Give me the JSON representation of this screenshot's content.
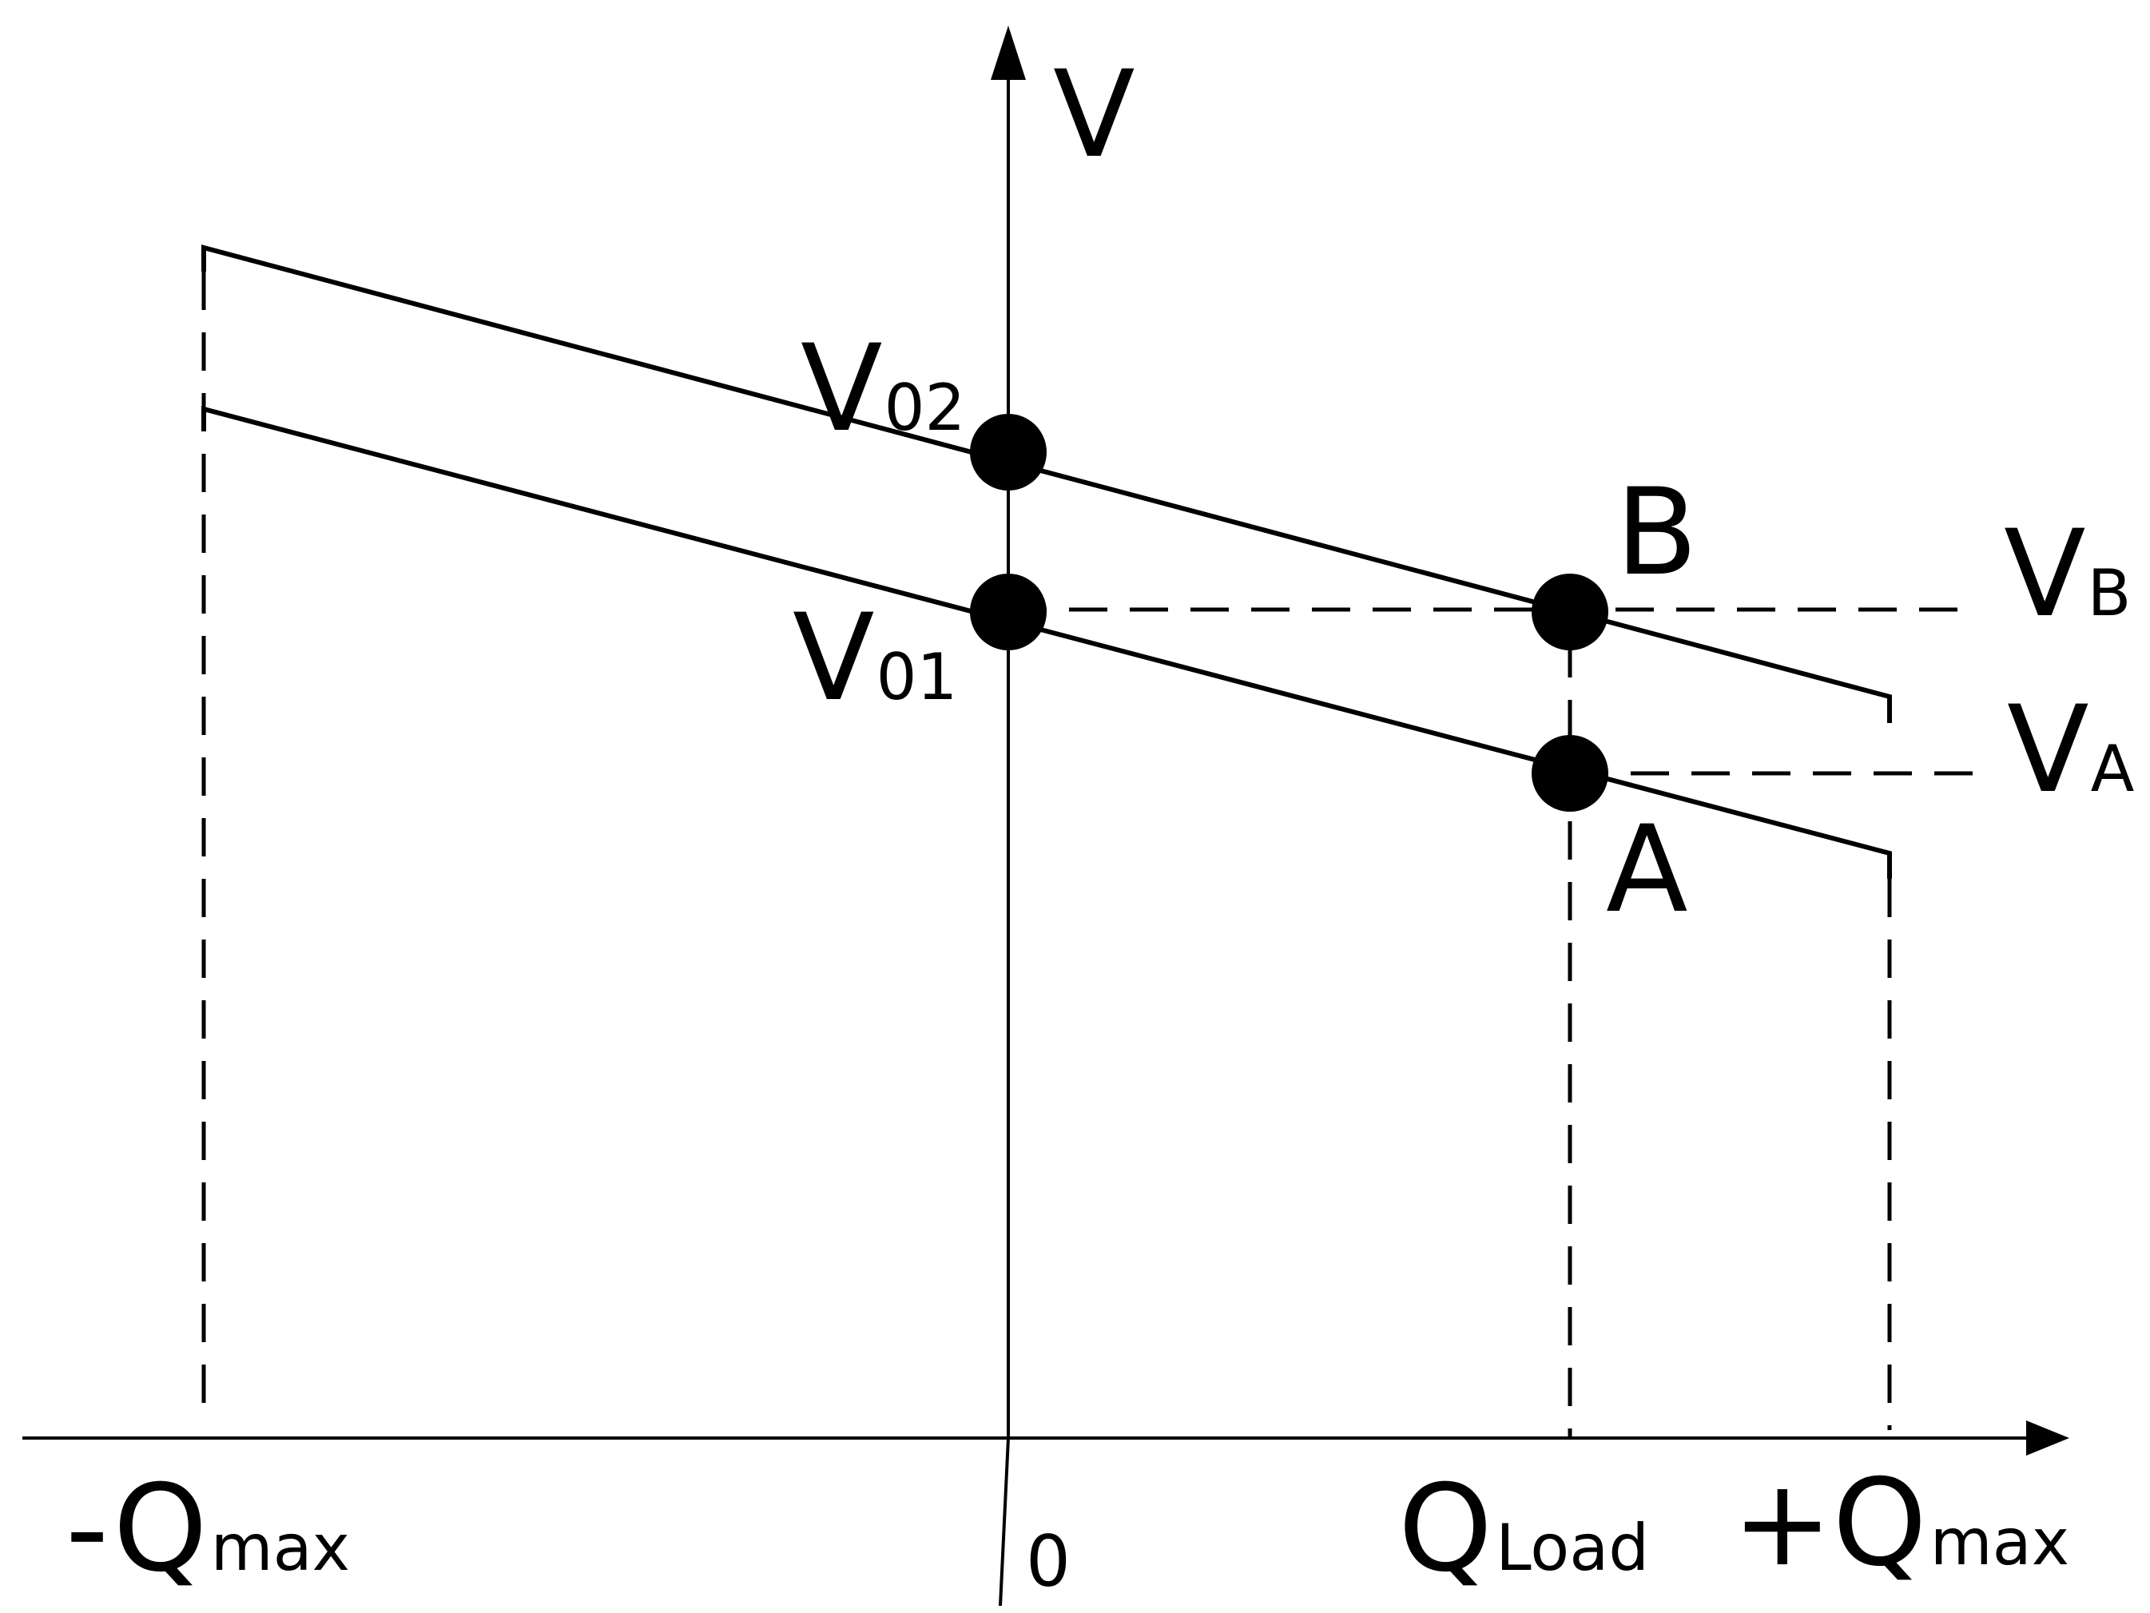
{
  "diagram": {
    "axes": {
      "y_label": "V",
      "origin_label": "0"
    },
    "labels": {
      "v02": {
        "main": "V",
        "sub": "02"
      },
      "v01": {
        "main": "V",
        "sub": "01"
      },
      "vb": {
        "main": "V",
        "sub": "B"
      },
      "va": {
        "main": "V",
        "sub": "A"
      },
      "point_b": "B",
      "point_a": "A",
      "neg_qmax": {
        "main": "-Q",
        "sub": "max"
      },
      "pos_qmax": {
        "main": "+Q",
        "sub": "max"
      },
      "qload": {
        "main": "Q",
        "sub": "Load"
      }
    },
    "colors": {
      "ink": "#000000",
      "background": "#ffffff"
    }
  }
}
